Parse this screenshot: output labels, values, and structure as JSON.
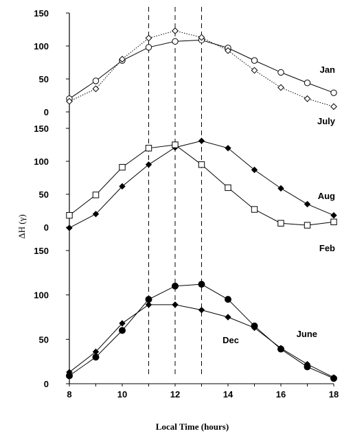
{
  "figure": {
    "ylabel": "ΔH (γ)",
    "xlabel": "Local Time (hours)"
  },
  "chart_data": [
    {
      "type": "line",
      "x": [
        8,
        9,
        10,
        11,
        12,
        13,
        14,
        15,
        16,
        17,
        18
      ],
      "xlim": [
        8,
        18
      ],
      "ylim": [
        0,
        150
      ],
      "yticks": [
        0,
        50,
        100,
        150
      ],
      "series": [
        {
          "name": "Jan",
          "marker": "circle-open",
          "line": "solid",
          "color": "#000000",
          "values": [
            20,
            47,
            78,
            98,
            107,
            109,
            97,
            78,
            60,
            44,
            29
          ]
        },
        {
          "name": "July",
          "marker": "diamond-open",
          "line": "dotted",
          "color": "#000000",
          "values": [
            16,
            35,
            80,
            112,
            123,
            113,
            93,
            63,
            37,
            20,
            8
          ]
        }
      ]
    },
    {
      "type": "line",
      "x": [
        8,
        9,
        10,
        11,
        12,
        13,
        14,
        15,
        16,
        17,
        18
      ],
      "xlim": [
        8,
        18
      ],
      "ylim": [
        0,
        150
      ],
      "yticks": [
        0,
        50,
        100,
        150
      ],
      "series": [
        {
          "name": "Aug",
          "marker": "diamond-filled",
          "line": "solid",
          "color": "#000000",
          "values": [
            -1,
            20,
            62,
            95,
            121,
            131,
            120,
            87,
            59,
            35,
            18
          ]
        },
        {
          "name": "Feb",
          "marker": "square-open",
          "line": "solid",
          "color": "#000000",
          "values": [
            18,
            49,
            91,
            120,
            125,
            95,
            60,
            27,
            6,
            3,
            8
          ]
        }
      ]
    },
    {
      "type": "line",
      "x": [
        8,
        9,
        10,
        11,
        12,
        13,
        14,
        15,
        16,
        17,
        18
      ],
      "xlim": [
        8,
        18
      ],
      "ylim": [
        0,
        150
      ],
      "xticks": [
        8,
        10,
        12,
        14,
        16,
        18
      ],
      "yticks": [
        0,
        50,
        100,
        150
      ],
      "series": [
        {
          "name": "Dec",
          "marker": "circle-filled",
          "line": "solid",
          "color": "#000000",
          "values": [
            9,
            30,
            60,
            95,
            110,
            112,
            95,
            65,
            39,
            19,
            6
          ]
        },
        {
          "name": "June",
          "marker": "diamond-filled",
          "line": "solid",
          "color": "#000000",
          "values": [
            13,
            36,
            68,
            89,
            89,
            83,
            75,
            63,
            40,
            22,
            7
          ]
        }
      ]
    }
  ],
  "reference_lines": {
    "x": [
      11,
      12,
      13
    ],
    "style": "dashed"
  }
}
